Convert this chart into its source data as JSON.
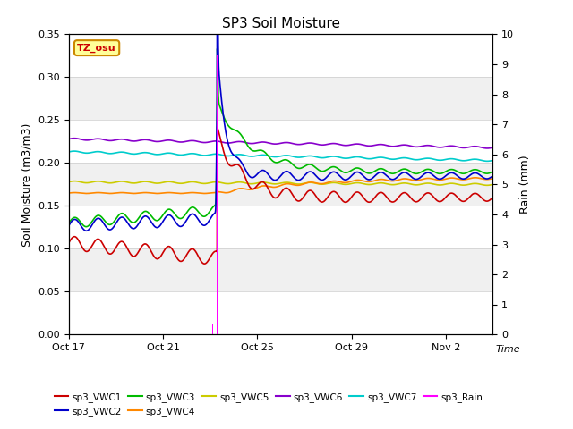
{
  "title": "SP3 Soil Moisture",
  "ylabel_left": "Soil Moisture (m3/m3)",
  "ylabel_right": "Rain (mm)",
  "xlabel": "Time",
  "ylim_left": [
    0.0,
    0.35
  ],
  "ylim_right": [
    0.0,
    10.0
  ],
  "yticks_left": [
    0.0,
    0.05,
    0.1,
    0.15,
    0.2,
    0.25,
    0.3,
    0.35
  ],
  "yticks_right": [
    0.0,
    1.0,
    2.0,
    3.0,
    4.0,
    5.0,
    6.0,
    7.0,
    8.0,
    9.0,
    10.0
  ],
  "xtick_days": [
    0,
    4,
    8,
    12,
    16
  ],
  "xtick_labels": [
    "Oct 17",
    "Oct 21",
    "Oct 25",
    "Oct 29",
    "Nov 2"
  ],
  "fig_bg_color": "#ffffff",
  "plot_bg_color": "#f0f0f0",
  "grid_color": "#ffffff",
  "timezone_label": "TZ_osu",
  "timezone_box_color": "#ffff99",
  "timezone_border_color": "#cc8800",
  "rain_event_day": 6.3,
  "rain_event_day2": 10.5,
  "rain_pre_day": 5.9,
  "rain_pre2_day": 6.1,
  "total_days": 18,
  "n_points": 2000,
  "series": {
    "VWC1": {
      "color": "#cc0000",
      "label": "sp3_VWC1"
    },
    "VWC2": {
      "color": "#0000cc",
      "label": "sp3_VWC2"
    },
    "VWC3": {
      "color": "#00bb00",
      "label": "sp3_VWC3"
    },
    "VWC4": {
      "color": "#ff8800",
      "label": "sp3_VWC4"
    },
    "VWC5": {
      "color": "#cccc00",
      "label": "sp3_VWC5"
    },
    "VWC6": {
      "color": "#8800cc",
      "label": "sp3_VWC6"
    },
    "VWC7": {
      "color": "#00cccc",
      "label": "sp3_VWC7"
    },
    "Rain": {
      "color": "#ff00ff",
      "label": "sp3_Rain"
    }
  }
}
